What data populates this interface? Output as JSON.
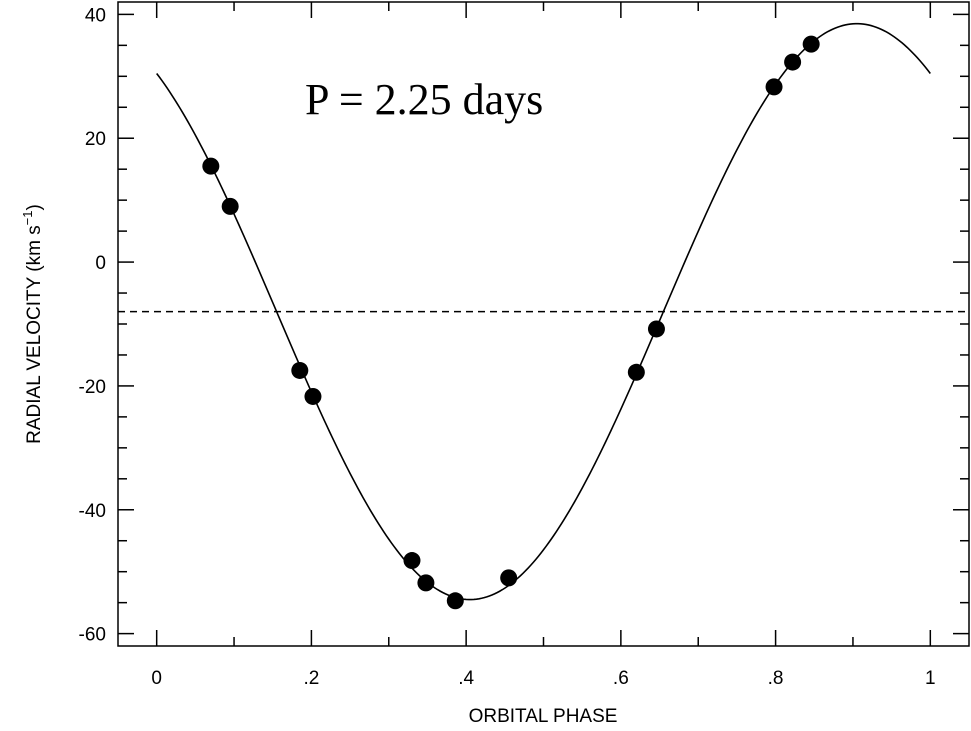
{
  "chart_data": {
    "type": "scatter",
    "annotation": "P = 2.25 days",
    "xlabel": "ORBITAL PHASE",
    "ylabel": "RADIAL VELOCITY (km s",
    "ylabel_sup": "−1",
    "ylabel_close": ")",
    "xlim": [
      -0.05,
      1.05
    ],
    "ylim": [
      -62,
      42
    ],
    "grid": false,
    "x_ticks": [
      {
        "value": 0,
        "label": "0"
      },
      {
        "value": 0.2,
        "label": ".2"
      },
      {
        "value": 0.4,
        "label": ".4"
      },
      {
        "value": 0.6,
        "label": ".6"
      },
      {
        "value": 0.8,
        "label": ".8"
      },
      {
        "value": 1,
        "label": "1"
      }
    ],
    "y_ticks": [
      {
        "value": 40,
        "label": "40"
      },
      {
        "value": 20,
        "label": "20"
      },
      {
        "value": 0,
        "label": "0"
      },
      {
        "value": -20,
        "label": "-20"
      },
      {
        "value": -40,
        "label": "-40"
      },
      {
        "value": -60,
        "label": "-60"
      }
    ],
    "systemic_velocity": -8,
    "fit_curve": {
      "gamma": -8,
      "amplitude": 46.5,
      "phase_of_max": 0.905
    },
    "series": [
      {
        "points": [
          {
            "x": 0.07,
            "y": 15.5
          },
          {
            "x": 0.095,
            "y": 9
          },
          {
            "x": 0.185,
            "y": -17.5
          },
          {
            "x": 0.202,
            "y": -21.7
          },
          {
            "x": 0.33,
            "y": -48.2
          },
          {
            "x": 0.348,
            "y": -51.8
          },
          {
            "x": 0.386,
            "y": -54.7
          },
          {
            "x": 0.455,
            "y": -51
          },
          {
            "x": 0.62,
            "y": -17.8
          },
          {
            "x": 0.646,
            "y": -10.8
          },
          {
            "x": 0.798,
            "y": 28.3
          },
          {
            "x": 0.822,
            "y": 32.3
          },
          {
            "x": 0.846,
            "y": 35.2
          }
        ]
      }
    ]
  }
}
